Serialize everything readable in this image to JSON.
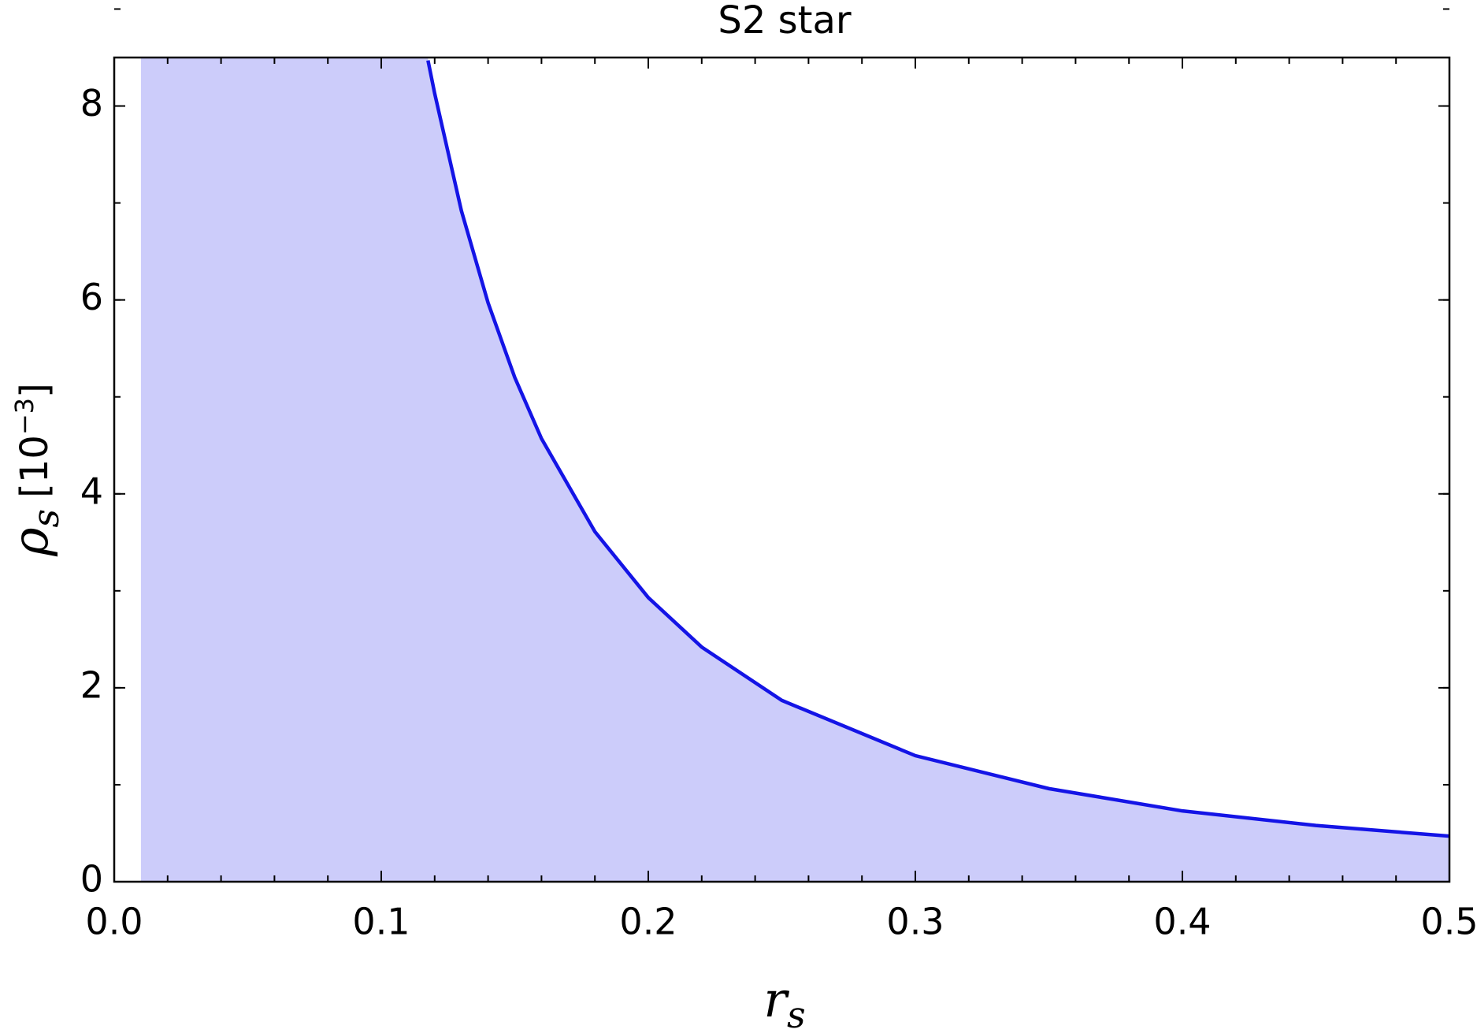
{
  "chart_data": {
    "type": "area",
    "title": "S2 star",
    "xlabel": [
      "r",
      "s"
    ],
    "ylabel": [
      "ρ",
      "s",
      "[10",
      "−3",
      "]"
    ],
    "x": [
      0.1175,
      0.12,
      0.13,
      0.14,
      0.15,
      0.16,
      0.18,
      0.2,
      0.22,
      0.25,
      0.3,
      0.35,
      0.4,
      0.45,
      0.5
    ],
    "values": [
      8.47,
      8.13,
      6.92,
      5.97,
      5.2,
      4.57,
      3.61,
      2.93,
      2.42,
      1.87,
      1.3,
      0.96,
      0.73,
      0.58,
      0.47
    ],
    "fill_start": 0.01,
    "color": "#1414e6",
    "fill_color": "#ccccfa",
    "xlim": [
      0,
      0.5
    ],
    "ylim": [
      0,
      8.5
    ],
    "xticks": [
      {
        "value": 0,
        "label": "0.0"
      },
      0.1,
      0.2,
      0.3,
      0.4,
      0.5
    ],
    "yticks": [
      0,
      2,
      4,
      6,
      8
    ],
    "xminor_step": 0.02,
    "yminor_step": 1
  }
}
